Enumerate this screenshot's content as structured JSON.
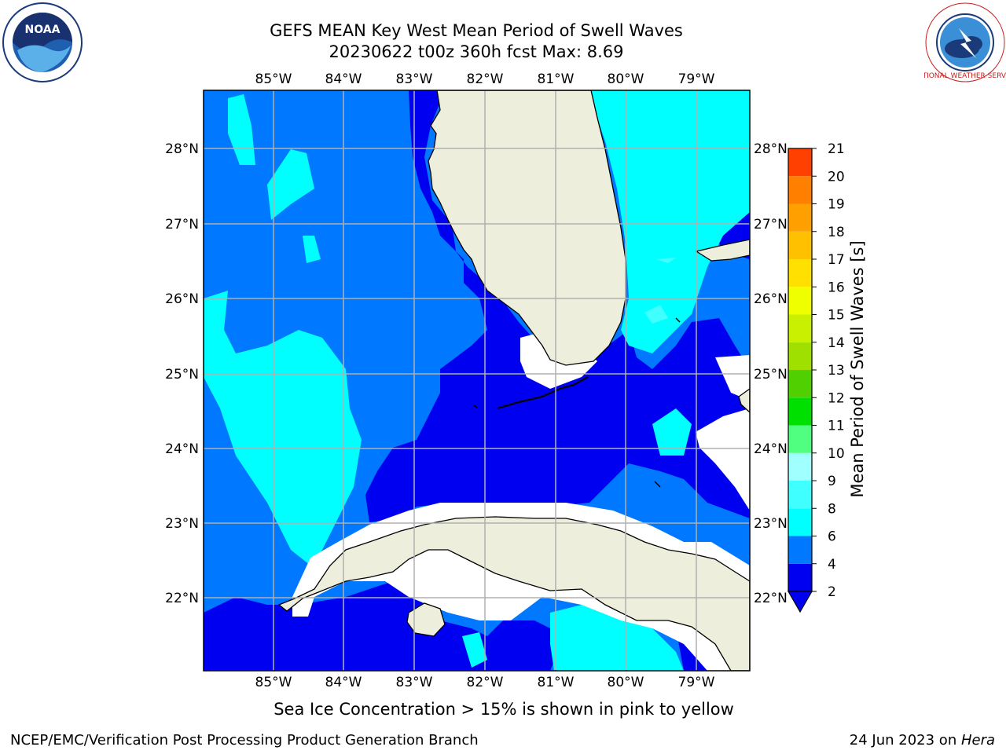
{
  "title": {
    "line1": "GEFS MEAN Key West Mean Period of Swell Waves",
    "line2": "20230622 t00z 360h fcst   Max: 8.69"
  },
  "map": {
    "lon_labels": [
      "85°W",
      "84°W",
      "83°W",
      "82°W",
      "81°W",
      "80°W",
      "79°W"
    ],
    "lat_labels": [
      "28°N",
      "27°N",
      "26°N",
      "25°N",
      "24°N",
      "23°N",
      "22°N"
    ],
    "colors": {
      "land": "#eeeedc",
      "band_2_4": "#0000f0",
      "band_4_6": "#0078ff",
      "band_6_8": "#00ffff",
      "band_8_9": "#40ffff",
      "grid": "#b0b0b0"
    }
  },
  "colorbar": {
    "label": "Mean Period of Swell Waves [s]",
    "ticks": [
      "2",
      "4",
      "6",
      "8",
      "9",
      "10",
      "11",
      "12",
      "13",
      "14",
      "15",
      "16",
      "17",
      "18",
      "19",
      "20",
      "21"
    ],
    "colors": [
      "#0000f0",
      "#0078ff",
      "#00ffff",
      "#40ffff",
      "#a0ffff",
      "#50ff80",
      "#00e000",
      "#50d000",
      "#a0e000",
      "#c8f000",
      "#f0ff00",
      "#ffe000",
      "#ffc000",
      "#ffa000",
      "#ff8000",
      "#ff4000",
      "#ff0000"
    ]
  },
  "footer": {
    "note": "Sea Ice Concentration > 15% is shown in pink to yellow",
    "credit_left": "NCEP/EMC/Verification Post Processing Product Generation Branch",
    "credit_date": "24 Jun 2023 on ",
    "credit_host": "Hera"
  },
  "logos": {
    "noaa_text": "NOAA",
    "nws_text": "NATIONAL WEATHER SERVICE"
  }
}
